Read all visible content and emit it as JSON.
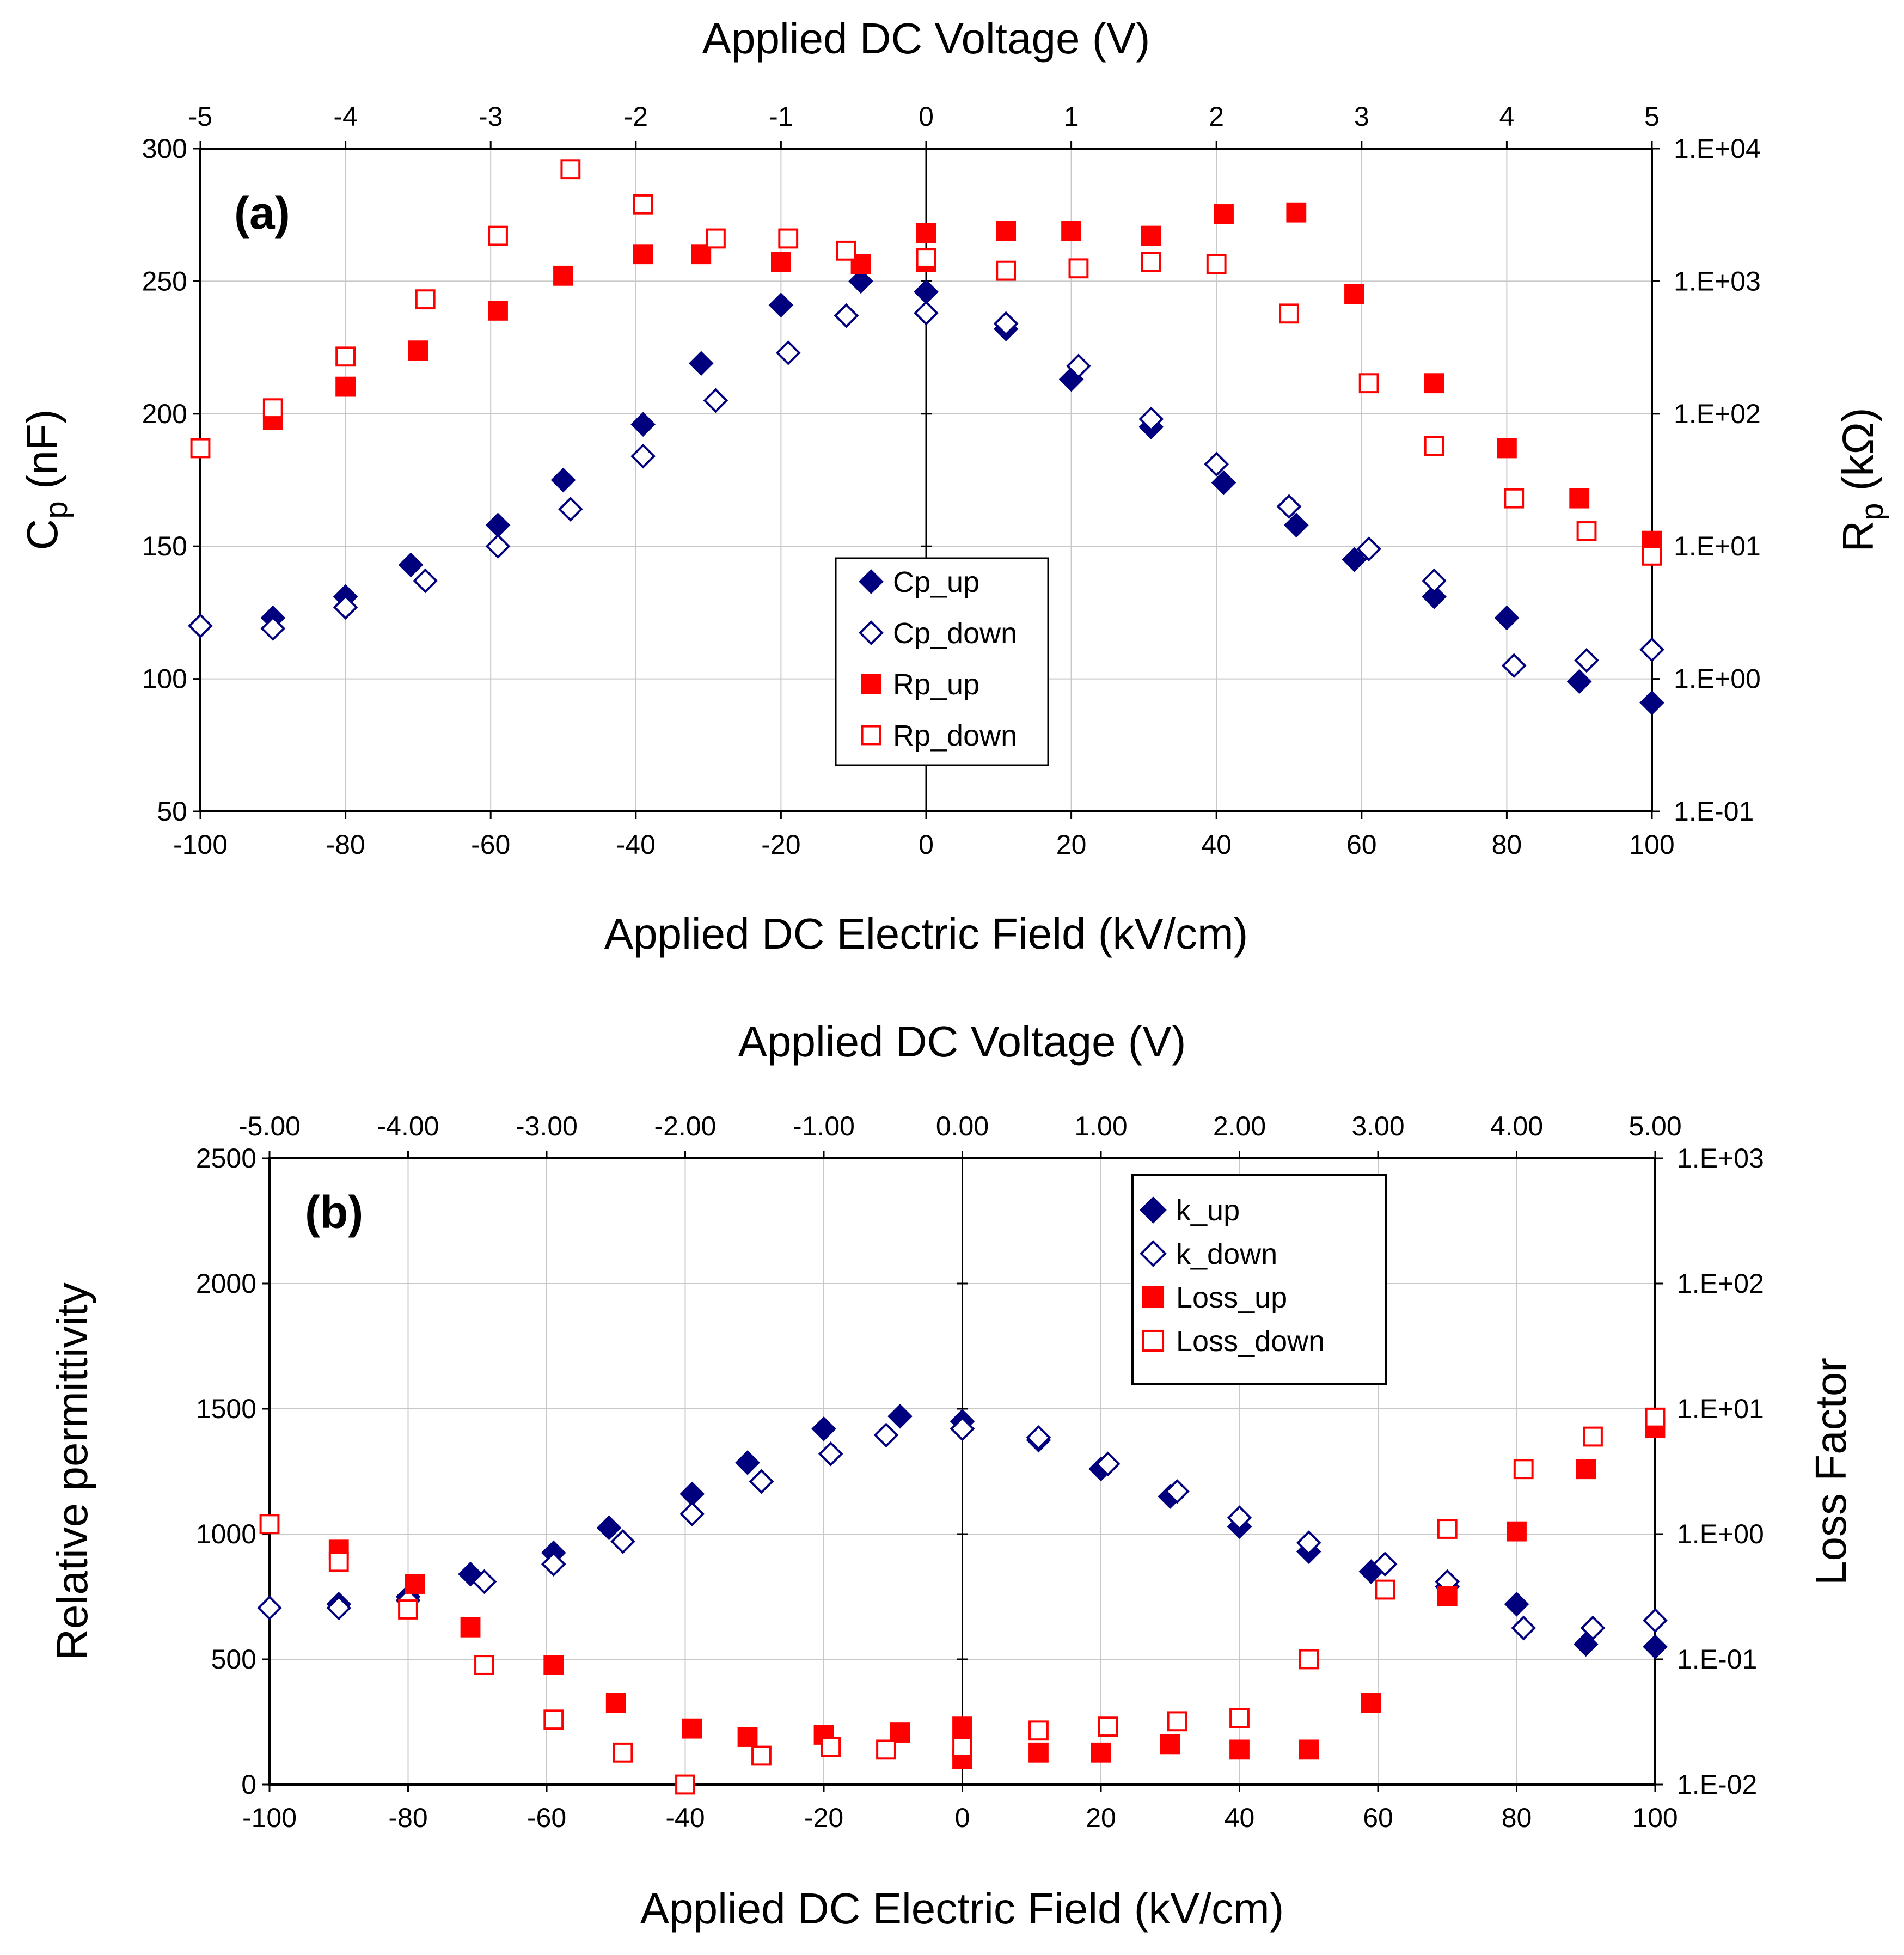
{
  "chart_data": [
    {
      "type": "scatter",
      "panel_label": "(a)",
      "xlabel": "Applied DC Electric Field (kV/cm)",
      "x2label": "Applied DC Voltage (V)",
      "ylabel_main": "C",
      "ylabel_sub": "p",
      "ylabel_unit": " (nF)",
      "y2label_main": "R",
      "y2label_sub": "p",
      "y2label_unit": " (kΩ)",
      "xlim": [
        -100,
        100
      ],
      "ylim": [
        50,
        300
      ],
      "y2lim_log10": [
        -1,
        4
      ],
      "x_ticks": [
        "-100",
        "-80",
        "-60",
        "-40",
        "-20",
        "0",
        "20",
        "40",
        "60",
        "80",
        "100"
      ],
      "x2_ticks": [
        "-5",
        "-4",
        "-3",
        "-2",
        "-1",
        "0",
        "1",
        "2",
        "3",
        "4",
        "5"
      ],
      "y_ticks": [
        "50",
        "100",
        "150",
        "200",
        "250",
        "300"
      ],
      "y2_ticks": [
        "1.E-01",
        "1.E+00",
        "1.E+01",
        "1.E+02",
        "1.E+03",
        "1.E+04"
      ],
      "legend_position": "center",
      "series": [
        {
          "name": "Cp_up",
          "axis": "left",
          "marker": "diamond-filled",
          "color": "#00007f",
          "x": [
            -90,
            -80,
            -71,
            -59,
            -50,
            -39,
            -31,
            -20,
            -9,
            0,
            11,
            20,
            31,
            41,
            51,
            59,
            70,
            80,
            90,
            100
          ],
          "y": [
            123,
            131,
            143,
            158,
            175,
            196,
            219,
            241,
            250,
            246,
            232,
            213,
            195,
            174,
            158,
            145,
            131,
            123,
            99,
            91
          ]
        },
        {
          "name": "Cp_down",
          "axis": "left",
          "marker": "diamond-open",
          "color": "#00007f",
          "x": [
            -100,
            -90,
            -80,
            -69,
            -59,
            -49,
            -39,
            -29,
            -19,
            -11,
            0,
            11,
            21,
            31,
            40,
            50,
            61,
            70,
            81,
            91,
            100
          ],
          "y": [
            120,
            119,
            127,
            137,
            150,
            164,
            184,
            205,
            223,
            237,
            238,
            234,
            218,
            198,
            181,
            165,
            149,
            137,
            105,
            107,
            111
          ]
        },
        {
          "name": "Rp_up",
          "axis": "right",
          "marker": "square-filled",
          "color": "#ff0000",
          "x": [
            -90,
            -80,
            -70,
            -59,
            -50,
            -39,
            -31,
            -20,
            -9,
            0,
            0,
            11,
            20,
            31,
            41,
            51,
            59,
            70,
            80,
            90,
            100
          ],
          "y": [
            90,
            160,
            300,
            600,
            1100,
            1600,
            1600,
            1400,
            1350,
            2300,
            1400,
            2400,
            2400,
            2200,
            3200,
            3300,
            800,
            170,
            55,
            23,
            11
          ]
        },
        {
          "name": "Rp_down",
          "axis": "right",
          "marker": "square-open",
          "color": "#ff0000",
          "x": [
            -100,
            -90,
            -80,
            -69,
            -59,
            -49,
            -39,
            -29,
            -19,
            -11,
            0,
            11,
            21,
            31,
            40,
            50,
            61,
            70,
            81,
            91,
            100
          ],
          "y": [
            55,
            110,
            270,
            730,
            2200,
            7000,
            3800,
            2100,
            2100,
            1700,
            1500,
            1200,
            1250,
            1400,
            1350,
            570,
            170,
            57,
            23,
            13,
            8.5
          ]
        }
      ]
    },
    {
      "type": "scatter",
      "panel_label": "(b)",
      "xlabel": "Applied DC Electric Field (kV/cm)",
      "x2label": "Applied DC Voltage (V)",
      "ylabel": "Relative permittivity",
      "y2label": "Loss Factor",
      "xlim": [
        -100,
        100
      ],
      "ylim": [
        0,
        2500
      ],
      "y2lim_log10": [
        -2,
        3
      ],
      "x_ticks": [
        "-100",
        "-80",
        "-60",
        "-40",
        "-20",
        "0",
        "20",
        "40",
        "60",
        "80",
        "100"
      ],
      "x2_ticks": [
        "-5.00",
        "-4.00",
        "-3.00",
        "-2.00",
        "-1.00",
        "0.00",
        "1.00",
        "2.00",
        "3.00",
        "4.00",
        "5.00"
      ],
      "y_ticks": [
        "0",
        "500",
        "1000",
        "1500",
        "2000",
        "2500"
      ],
      "y2_ticks": [
        "1.E-02",
        "1.E-01",
        "1.E+00",
        "1.E+01",
        "1.E+02",
        "1.E+03"
      ],
      "legend_position": "top-right",
      "series": [
        {
          "name": "k_up",
          "axis": "left",
          "marker": "diamond-filled",
          "color": "#00007f",
          "x": [
            -90,
            -80,
            -71,
            -59,
            -51,
            -39,
            -31,
            -20,
            -9,
            0,
            11,
            20,
            30,
            40,
            50,
            59,
            70,
            80,
            90,
            100
          ],
          "y": [
            720,
            750,
            840,
            925,
            1025,
            1160,
            1285,
            1420,
            1470,
            1450,
            1375,
            1260,
            1150,
            1030,
            930,
            850,
            790,
            720,
            560,
            550
          ]
        },
        {
          "name": "k_down",
          "axis": "left",
          "marker": "diamond-open",
          "color": "#00007f",
          "x": [
            -100,
            -90,
            -80,
            -69,
            -59,
            -49,
            -39,
            -29,
            -19,
            -11,
            0,
            11,
            21,
            31,
            40,
            50,
            61,
            70,
            81,
            91,
            100
          ],
          "y": [
            705,
            705,
            735,
            810,
            880,
            970,
            1080,
            1210,
            1320,
            1395,
            1420,
            1385,
            1280,
            1170,
            1065,
            965,
            880,
            810,
            625,
            625,
            655
          ]
        },
        {
          "name": "Loss_up",
          "axis": "right",
          "marker": "square-filled",
          "color": "#ff0000",
          "x": [
            -90,
            -79,
            -71,
            -59,
            -50,
            -39,
            -31,
            -20,
            -9,
            0,
            0,
            11,
            20,
            30,
            40,
            50,
            59,
            70,
            80,
            90,
            100
          ],
          "y": [
            0.75,
            0.4,
            0.18,
            0.09,
            0.045,
            0.028,
            0.024,
            0.025,
            0.026,
            0.029,
            0.016,
            0.018,
            0.018,
            0.021,
            0.019,
            0.019,
            0.045,
            0.32,
            1.05,
            3.3,
            7
          ]
        },
        {
          "name": "Loss_down",
          "axis": "right",
          "marker": "square-open",
          "color": "#ff0000",
          "x": [
            -100,
            -90,
            -80,
            -69,
            -59,
            -49,
            -40,
            -29,
            -19,
            -11,
            0,
            11,
            21,
            31,
            40,
            50,
            61,
            70,
            81,
            91,
            100
          ],
          "y": [
            1.2,
            0.6,
            0.25,
            0.09,
            0.033,
            0.018,
            0.01,
            0.017,
            0.02,
            0.019,
            0.02,
            0.027,
            0.029,
            0.032,
            0.034,
            0.1,
            0.36,
            1.1,
            3.3,
            6,
            8.5
          ]
        }
      ]
    }
  ]
}
